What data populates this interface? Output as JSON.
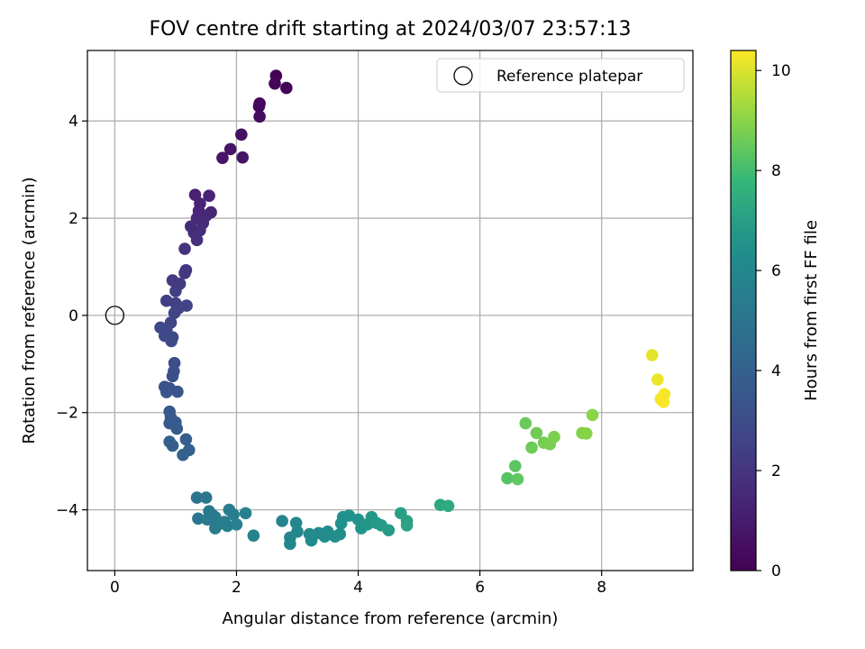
{
  "chart_data": {
    "type": "scatter",
    "title": "FOV centre drift starting at 2024/03/07 23:57:13",
    "xlabel": "Angular distance from reference (arcmin)",
    "ylabel": "Rotation from reference (arcmin)",
    "xlim": [
      -0.45,
      9.5
    ],
    "ylim": [
      -5.25,
      5.45
    ],
    "x_ticks": [
      0,
      2,
      4,
      6,
      8
    ],
    "y_ticks": [
      -4,
      -2,
      0,
      2,
      4
    ],
    "grid": true,
    "legend": {
      "placement": "top-right",
      "entries": [
        "Reference platepar"
      ]
    },
    "reference_point": {
      "x": 0,
      "y": 0
    },
    "colorbar": {
      "label": "Hours from first FF file",
      "colormap": "viridis",
      "range": [
        0,
        10.4
      ],
      "ticks": [
        0,
        2,
        4,
        6,
        8,
        10
      ]
    },
    "points": [
      {
        "x": 2.65,
        "y": 4.93,
        "hours": 0.05
      },
      {
        "x": 2.82,
        "y": 4.68,
        "hours": 0.15
      },
      {
        "x": 2.63,
        "y": 4.77,
        "hours": 0.2
      },
      {
        "x": 2.38,
        "y": 4.36,
        "hours": 0.3
      },
      {
        "x": 2.37,
        "y": 4.3,
        "hours": 0.35
      },
      {
        "x": 2.38,
        "y": 4.09,
        "hours": 0.4
      },
      {
        "x": 2.08,
        "y": 3.72,
        "hours": 0.55
      },
      {
        "x": 1.9,
        "y": 3.42,
        "hours": 0.65
      },
      {
        "x": 1.77,
        "y": 3.24,
        "hours": 0.75
      },
      {
        "x": 2.1,
        "y": 3.25,
        "hours": 0.7
      },
      {
        "x": 1.32,
        "y": 2.48,
        "hours": 1.2
      },
      {
        "x": 1.55,
        "y": 2.46,
        "hours": 1.25
      },
      {
        "x": 1.4,
        "y": 2.3,
        "hours": 1.3
      },
      {
        "x": 1.38,
        "y": 2.15,
        "hours": 1.35
      },
      {
        "x": 1.58,
        "y": 2.12,
        "hours": 1.4
      },
      {
        "x": 1.5,
        "y": 2.05,
        "hours": 1.45
      },
      {
        "x": 1.35,
        "y": 2.0,
        "hours": 1.5
      },
      {
        "x": 1.45,
        "y": 1.9,
        "hours": 1.55
      },
      {
        "x": 1.25,
        "y": 1.83,
        "hours": 1.6
      },
      {
        "x": 1.3,
        "y": 1.7,
        "hours": 1.65
      },
      {
        "x": 1.4,
        "y": 1.75,
        "hours": 1.7
      },
      {
        "x": 1.35,
        "y": 1.55,
        "hours": 1.75
      },
      {
        "x": 1.15,
        "y": 1.37,
        "hours": 1.9
      },
      {
        "x": 1.17,
        "y": 0.93,
        "hours": 2.05
      },
      {
        "x": 1.15,
        "y": 0.87,
        "hours": 2.1
      },
      {
        "x": 0.95,
        "y": 0.72,
        "hours": 2.2
      },
      {
        "x": 1.07,
        "y": 0.65,
        "hours": 2.25
      },
      {
        "x": 1.0,
        "y": 0.5,
        "hours": 2.3
      },
      {
        "x": 0.85,
        "y": 0.3,
        "hours": 2.4
      },
      {
        "x": 1.0,
        "y": 0.25,
        "hours": 2.45
      },
      {
        "x": 1.18,
        "y": 0.2,
        "hours": 2.5
      },
      {
        "x": 1.05,
        "y": 0.15,
        "hours": 2.55
      },
      {
        "x": 0.98,
        "y": 0.05,
        "hours": 2.6
      },
      {
        "x": 0.92,
        "y": -0.15,
        "hours": 2.7
      },
      {
        "x": 0.75,
        "y": -0.25,
        "hours": 2.75
      },
      {
        "x": 0.85,
        "y": -0.3,
        "hours": 2.8
      },
      {
        "x": 0.82,
        "y": -0.42,
        "hours": 2.85
      },
      {
        "x": 0.95,
        "y": -0.45,
        "hours": 2.9
      },
      {
        "x": 0.93,
        "y": -0.53,
        "hours": 2.95
      },
      {
        "x": 0.98,
        "y": -0.98,
        "hours": 3.1
      },
      {
        "x": 0.97,
        "y": -1.15,
        "hours": 3.15
      },
      {
        "x": 0.95,
        "y": -1.25,
        "hours": 3.2
      },
      {
        "x": 0.82,
        "y": -1.47,
        "hours": 3.3
      },
      {
        "x": 0.9,
        "y": -1.5,
        "hours": 3.35
      },
      {
        "x": 0.85,
        "y": -1.58,
        "hours": 3.4
      },
      {
        "x": 1.03,
        "y": -1.57,
        "hours": 3.45
      },
      {
        "x": 0.9,
        "y": -1.98,
        "hours": 3.55
      },
      {
        "x": 0.92,
        "y": -2.1,
        "hours": 3.6
      },
      {
        "x": 0.9,
        "y": -2.22,
        "hours": 3.65
      },
      {
        "x": 1.0,
        "y": -2.2,
        "hours": 3.7
      },
      {
        "x": 1.02,
        "y": -2.33,
        "hours": 3.75
      },
      {
        "x": 1.17,
        "y": -2.55,
        "hours": 3.85
      },
      {
        "x": 0.9,
        "y": -2.6,
        "hours": 3.9
      },
      {
        "x": 0.95,
        "y": -2.68,
        "hours": 3.95
      },
      {
        "x": 1.22,
        "y": -2.77,
        "hours": 4.0
      },
      {
        "x": 1.12,
        "y": -2.87,
        "hours": 4.05
      },
      {
        "x": 1.35,
        "y": -3.75,
        "hours": 5.0
      },
      {
        "x": 1.5,
        "y": -3.75,
        "hours": 5.05
      },
      {
        "x": 1.37,
        "y": -4.18,
        "hours": 5.1
      },
      {
        "x": 1.55,
        "y": -4.03,
        "hours": 5.15
      },
      {
        "x": 1.6,
        "y": -4.1,
        "hours": 5.2
      },
      {
        "x": 1.52,
        "y": -4.2,
        "hours": 5.25
      },
      {
        "x": 1.65,
        "y": -4.15,
        "hours": 5.3
      },
      {
        "x": 1.7,
        "y": -4.3,
        "hours": 5.35
      },
      {
        "x": 1.65,
        "y": -4.38,
        "hours": 5.4
      },
      {
        "x": 1.8,
        "y": -4.25,
        "hours": 5.45
      },
      {
        "x": 1.88,
        "y": -4.0,
        "hours": 5.5
      },
      {
        "x": 1.95,
        "y": -4.1,
        "hours": 5.55
      },
      {
        "x": 1.85,
        "y": -4.33,
        "hours": 5.6
      },
      {
        "x": 2.0,
        "y": -4.3,
        "hours": 5.65
      },
      {
        "x": 2.15,
        "y": -4.07,
        "hours": 5.7
      },
      {
        "x": 2.28,
        "y": -4.53,
        "hours": 5.75
      },
      {
        "x": 2.75,
        "y": -4.23,
        "hours": 5.85
      },
      {
        "x": 2.88,
        "y": -4.57,
        "hours": 5.9
      },
      {
        "x": 2.88,
        "y": -4.7,
        "hours": 5.95
      },
      {
        "x": 2.98,
        "y": -4.27,
        "hours": 6.0
      },
      {
        "x": 3.0,
        "y": -4.45,
        "hours": 6.05
      },
      {
        "x": 3.2,
        "y": -4.5,
        "hours": 6.1
      },
      {
        "x": 3.23,
        "y": -4.63,
        "hours": 6.15
      },
      {
        "x": 3.35,
        "y": -4.48,
        "hours": 6.2
      },
      {
        "x": 3.45,
        "y": -4.55,
        "hours": 6.25
      },
      {
        "x": 3.5,
        "y": -4.45,
        "hours": 6.3
      },
      {
        "x": 3.62,
        "y": -4.55,
        "hours": 6.35
      },
      {
        "x": 3.7,
        "y": -4.5,
        "hours": 6.4
      },
      {
        "x": 3.75,
        "y": -4.15,
        "hours": 6.45
      },
      {
        "x": 3.72,
        "y": -4.28,
        "hours": 6.5
      },
      {
        "x": 3.85,
        "y": -4.12,
        "hours": 6.55
      },
      {
        "x": 4.0,
        "y": -4.2,
        "hours": 6.6
      },
      {
        "x": 4.05,
        "y": -4.38,
        "hours": 6.65
      },
      {
        "x": 4.15,
        "y": -4.3,
        "hours": 6.7
      },
      {
        "x": 4.22,
        "y": -4.15,
        "hours": 6.75
      },
      {
        "x": 4.3,
        "y": -4.27,
        "hours": 6.8
      },
      {
        "x": 4.38,
        "y": -4.32,
        "hours": 6.85
      },
      {
        "x": 4.5,
        "y": -4.42,
        "hours": 6.9
      },
      {
        "x": 4.7,
        "y": -4.07,
        "hours": 7.0
      },
      {
        "x": 4.8,
        "y": -4.23,
        "hours": 7.05
      },
      {
        "x": 4.8,
        "y": -4.32,
        "hours": 7.1
      },
      {
        "x": 5.35,
        "y": -3.9,
        "hours": 7.3
      },
      {
        "x": 5.48,
        "y": -3.92,
        "hours": 7.35
      },
      {
        "x": 6.45,
        "y": -3.35,
        "hours": 8.3
      },
      {
        "x": 6.58,
        "y": -3.1,
        "hours": 8.35
      },
      {
        "x": 6.62,
        "y": -3.37,
        "hours": 8.4
      },
      {
        "x": 6.75,
        "y": -2.22,
        "hours": 8.55
      },
      {
        "x": 6.85,
        "y": -2.72,
        "hours": 8.6
      },
      {
        "x": 6.93,
        "y": -2.42,
        "hours": 8.65
      },
      {
        "x": 7.05,
        "y": -2.62,
        "hours": 8.7
      },
      {
        "x": 7.15,
        "y": -2.65,
        "hours": 8.75
      },
      {
        "x": 7.22,
        "y": -2.5,
        "hours": 8.8
      },
      {
        "x": 7.68,
        "y": -2.42,
        "hours": 8.9
      },
      {
        "x": 7.75,
        "y": -2.43,
        "hours": 8.95
      },
      {
        "x": 7.85,
        "y": -2.05,
        "hours": 9.0
      },
      {
        "x": 8.83,
        "y": -0.82,
        "hours": 10.1
      },
      {
        "x": 8.92,
        "y": -1.32,
        "hours": 10.2
      },
      {
        "x": 9.03,
        "y": -1.62,
        "hours": 10.3
      },
      {
        "x": 8.97,
        "y": -1.72,
        "hours": 10.32
      },
      {
        "x": 9.02,
        "y": -1.78,
        "hours": 10.35
      }
    ]
  }
}
